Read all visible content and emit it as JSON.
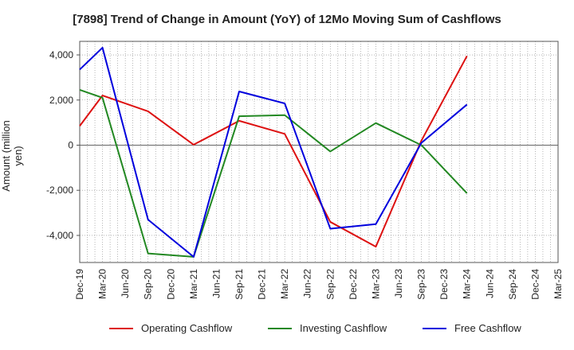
{
  "chart_data": {
    "type": "line",
    "title": "[7898]  Trend of Change in Amount (YoY) of 12Mo Moving Sum of Cashflows",
    "xlabel": "",
    "ylabel": "Amount (million yen)",
    "categories": [
      "Dec-19",
      "Mar-20",
      "Jun-20",
      "Sep-20",
      "Dec-20",
      "Mar-21",
      "Jun-21",
      "Sep-21",
      "Dec-21",
      "Mar-22",
      "Jun-22",
      "Sep-22",
      "Dec-22",
      "Mar-23",
      "Jun-23",
      "Sep-23",
      "Dec-23",
      "Mar-24",
      "Jun-24",
      "Sep-24",
      "Dec-24",
      "Mar-25"
    ],
    "ylim": [
      -5200,
      4600
    ],
    "yticks": [
      4000,
      2000,
      0,
      -2000,
      -4000
    ],
    "ytick_labels": [
      "4,000",
      "2,000",
      "0",
      "-2,000",
      "-4,000"
    ],
    "grid": true,
    "legend_position": "bottom",
    "series": [
      {
        "name": "Operating Cashflow",
        "color": "#dd1111",
        "values": [
          850,
          2200,
          null,
          1500,
          null,
          20,
          null,
          1080,
          null,
          500,
          null,
          -3400,
          null,
          -4500,
          null,
          200,
          null,
          3950,
          null,
          null,
          null,
          null
        ]
      },
      {
        "name": "Investing Cashflow",
        "color": "#228822",
        "values": [
          2450,
          2100,
          null,
          -4800,
          null,
          -4950,
          null,
          1280,
          null,
          1330,
          null,
          -280,
          null,
          980,
          null,
          0,
          null,
          -2130,
          null,
          null,
          null,
          null
        ]
      },
      {
        "name": "Free Cashflow",
        "color": "#0000dd",
        "values": [
          3350,
          4320,
          null,
          -3300,
          null,
          -4950,
          null,
          2380,
          null,
          1850,
          null,
          -3700,
          null,
          -3500,
          null,
          100,
          null,
          1800,
          null,
          null,
          null,
          null
        ]
      }
    ]
  }
}
